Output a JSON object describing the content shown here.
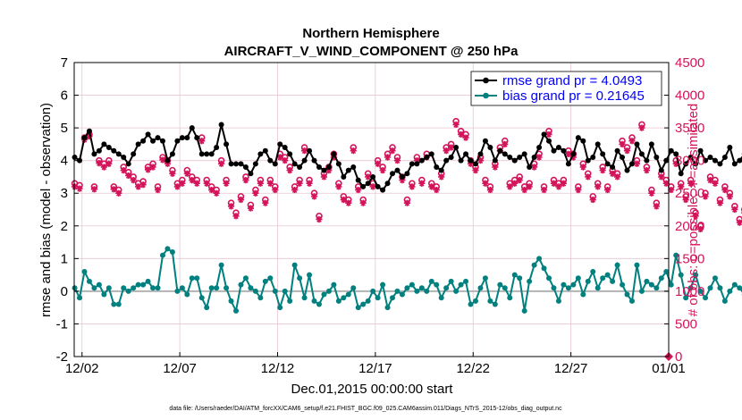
{
  "chart_data": {
    "type": "line",
    "title": [
      "Northern Hemisphere",
      "AIRCRAFT_V_WIND_COMPONENT @ 250 hPa"
    ],
    "xlabel": "Dec.01,2015 00:00:00 start",
    "ylabel_left": "rmse and bias (model - observation)",
    "ylabel_right": "# of obs: o=possible; ∗=assimilated",
    "footnote": "data file: /Users/raeder/DAI/ATM_forcXX/CAM6_setup/f.e21.FHIST_BGC.f09_025.CAM6assim.011/Diags_NTrS_2015-12/obs_diag_output.nc",
    "xlim_days": [
      1.6,
      32
    ],
    "x_ticks": [
      {
        "day": 2,
        "label": "12/02"
      },
      {
        "day": 7,
        "label": "12/07"
      },
      {
        "day": 12,
        "label": "12/12"
      },
      {
        "day": 17,
        "label": "12/17"
      },
      {
        "day": 22,
        "label": "12/22"
      },
      {
        "day": 27,
        "label": "12/27"
      },
      {
        "day": 32,
        "label": "01/01"
      }
    ],
    "ylim_left": [
      -2,
      7
    ],
    "left_ticks": [
      "-2",
      "-1",
      "0",
      "1",
      "2",
      "3",
      "4",
      "5",
      "6",
      "7"
    ],
    "ylim_right": [
      0,
      4500
    ],
    "right_ticks": [
      "0",
      "500",
      "1000",
      "1500",
      "2000",
      "2500",
      "3000",
      "3500",
      "4000",
      "4500"
    ],
    "colors": {
      "rmse": "#000000",
      "bias": "#00807f",
      "obs": "#d4145a",
      "zero": "#b3b3b3",
      "grid": "#e8c6d3",
      "right_axis": "#d4145a"
    },
    "legend": [
      {
        "name": "rmse",
        "label": "rmse grand pr = 4.0493"
      },
      {
        "name": "bias",
        "label": "bias grand pr = 0.21645"
      }
    ],
    "x_start_day": 1.625,
    "x_step_days": 0.25,
    "series": [
      {
        "name": "rmse",
        "values": [
          4.1,
          4.0,
          4.7,
          4.9,
          4.2,
          4.3,
          4.5,
          4.4,
          4.3,
          4.2,
          4.1,
          3.9,
          4.2,
          4.5,
          4.6,
          4.8,
          4.6,
          4.7,
          4.6,
          4.0,
          4.2,
          4.6,
          4.7,
          4.7,
          5.0,
          4.7,
          4.2,
          4.2,
          4.2,
          4.4,
          5.1,
          4.5,
          3.9,
          3.9,
          3.9,
          3.8,
          3.6,
          3.9,
          4.2,
          4.3,
          4.0,
          3.9,
          4.5,
          4.4,
          4.2,
          3.9,
          3.8,
          4.0,
          4.3,
          4.0,
          3.8,
          3.7,
          3.8,
          4.2,
          3.9,
          3.5,
          3.7,
          3.8,
          3.4,
          3.2,
          3.3,
          3.5,
          3.2,
          3.1,
          3.3,
          3.6,
          3.7,
          3.5,
          3.6,
          3.9,
          3.9,
          4.0,
          4.1,
          4.2,
          3.8,
          3.7,
          4.0,
          4.1,
          4.4,
          4.0,
          4.2,
          4.0,
          3.9,
          4.2,
          4.6,
          4.4,
          4.0,
          4.3,
          4.2,
          4.1,
          4.0,
          4.1,
          4.2,
          3.8,
          4.1,
          4.4,
          4.8,
          4.6,
          4.3,
          4.4,
          4.3,
          3.9,
          4.2,
          4.7,
          4.6,
          4.0,
          4.1,
          4.5,
          4.2,
          3.9,
          3.8,
          4.3,
          4.1,
          3.7,
          3.9,
          4.5,
          4.2,
          4.0,
          4.5,
          4.1,
          3.7,
          4.0,
          4.3,
          4.2,
          3.6,
          3.9,
          4.1,
          3.9,
          4.3,
          4.0,
          4.1,
          4.0,
          3.9,
          4.1,
          4.4,
          3.9,
          4.0,
          4.2,
          4.0
        ],
        "error": null
      },
      {
        "name": "bias",
        "values": [
          0.1,
          -0.2,
          0.6,
          0.3,
          0.1,
          0.2,
          -0.1,
          0.1,
          -0.4,
          -0.4,
          0.1,
          0.0,
          0.1,
          0.2,
          0.2,
          0.3,
          0.1,
          0.1,
          1.1,
          1.3,
          1.2,
          0.0,
          0.1,
          -0.1,
          0.4,
          0.4,
          -0.2,
          -0.5,
          0.1,
          0.1,
          0.8,
          0.1,
          -0.3,
          -0.6,
          0.2,
          0.4,
          0.1,
          0.0,
          -0.2,
          0.3,
          0.4,
          0.0,
          -0.5,
          0.0,
          -0.3,
          0.8,
          0.4,
          -0.2,
          0.5,
          -0.3,
          -0.4,
          -0.1,
          0.0,
          0.2,
          -0.3,
          -0.2,
          -0.1,
          0.1,
          -0.5,
          -0.4,
          -0.3,
          0.0,
          -0.2,
          0.2,
          -0.5,
          -0.2,
          0.0,
          -0.1,
          0.1,
          0.2,
          0.0,
          0.1,
          0.0,
          0.3,
          0.2,
          -0.2,
          0.1,
          0.3,
          0.0,
          0.2,
          0.3,
          -0.4,
          -0.3,
          0.1,
          0.4,
          -0.3,
          -0.4,
          0.2,
          0.1,
          -0.2,
          0.5,
          0.4,
          -0.6,
          0.3,
          0.8,
          1.0,
          0.7,
          0.4,
          0.1,
          -0.3,
          0.2,
          0.1,
          0.2,
          0.4,
          -0.1,
          0.3,
          0.6,
          0.1,
          0.4,
          0.5,
          0.3,
          0.8,
          0.2,
          -0.1,
          -0.3,
          0.8,
          0.0,
          0.3,
          0.2,
          0.1,
          0.4,
          0.6,
          0.2,
          1.1,
          0.5,
          -0.2,
          0.1,
          0.5,
          0.0,
          -0.2,
          0.1,
          0.4,
          0.1,
          -0.3,
          0.0,
          0.2,
          0.1,
          -0.1,
          0.4
        ],
        "error": null
      }
    ],
    "obs_possible": [
      2650,
      2620,
      3350,
      3400,
      2600,
      3000,
      2950,
      3000,
      2600,
      2550,
      2900,
      2820,
      2750,
      2650,
      2680,
      2900,
      2950,
      2600,
      3050,
      3000,
      2850,
      2650,
      2700,
      2850,
      2750,
      2700,
      3350,
      2700,
      2600,
      2550,
      3000,
      2700,
      2350,
      2200,
      2450,
      2750,
      2320,
      2550,
      2700,
      2400,
      2700,
      2600,
      3100,
      3050,
      2900,
      2600,
      2700,
      3200,
      2700,
      2500,
      2150,
      2800,
      2900,
      3100,
      2650,
      2450,
      2400,
      3200,
      2600,
      2400,
      2800,
      2650,
      3000,
      2900,
      3100,
      3200,
      3050,
      2750,
      2400,
      2650,
      3050,
      2700,
      3100,
      2650,
      2600,
      2800,
      3200,
      3250,
      3600,
      3450,
      3400,
      3000,
      2900,
      3050,
      2700,
      2600,
      2950,
      3200,
      3300,
      2650,
      2700,
      2750,
      2600,
      2650,
      2950,
      3100,
      2600,
      3450,
      2700,
      2650,
      2700,
      3150,
      3100,
      2600,
      2950,
      2800,
      2450,
      2650,
      2900,
      2600,
      2850,
      2800,
      3300,
      3200,
      3350,
      3000,
      3550,
      2900,
      2550,
      2350,
      2800,
      2700,
      2600,
      3000,
      2650,
      2450,
      2700,
      2200,
      2000,
      2500,
      2750,
      2700,
      2400,
      2600,
      2500,
      2300,
      2100,
      2250,
      2150
    ],
    "obs_assimilated": [
      2600,
      2570,
      3320,
      3370,
      2560,
      2960,
      2900,
      2950,
      2560,
      2500,
      2850,
      2770,
      2700,
      2600,
      2630,
      2860,
      2900,
      2550,
      3010,
      2950,
      2800,
      2600,
      2650,
      2800,
      2700,
      2650,
      3300,
      2650,
      2550,
      2500,
      2950,
      2650,
      2300,
      2150,
      2400,
      2700,
      2270,
      2500,
      2650,
      2350,
      2650,
      2550,
      3050,
      3000,
      2850,
      2550,
      2650,
      3150,
      2650,
      2450,
      2100,
      2750,
      2850,
      3050,
      2600,
      2400,
      2350,
      3150,
      2550,
      2350,
      2750,
      2600,
      2950,
      2850,
      3050,
      3150,
      3000,
      2700,
      2350,
      2600,
      3000,
      2650,
      3050,
      2600,
      2550,
      2750,
      3150,
      3200,
      3550,
      3400,
      3350,
      2950,
      2850,
      3000,
      2650,
      2550,
      2900,
      3150,
      3250,
      2600,
      2650,
      2700,
      2550,
      2600,
      2900,
      3050,
      2550,
      3400,
      2650,
      2600,
      2650,
      3100,
      3050,
      2550,
      2900,
      2750,
      2400,
      2600,
      2850,
      2550,
      2800,
      2750,
      3250,
      3150,
      3300,
      2950,
      3500,
      2850,
      2500,
      2300,
      2750,
      2650,
      2550,
      2950,
      2600,
      2400,
      2650,
      2150,
      1950,
      2450,
      2700,
      2650,
      2350,
      2550,
      2450,
      2250,
      2050,
      2200,
      2100
    ]
  }
}
